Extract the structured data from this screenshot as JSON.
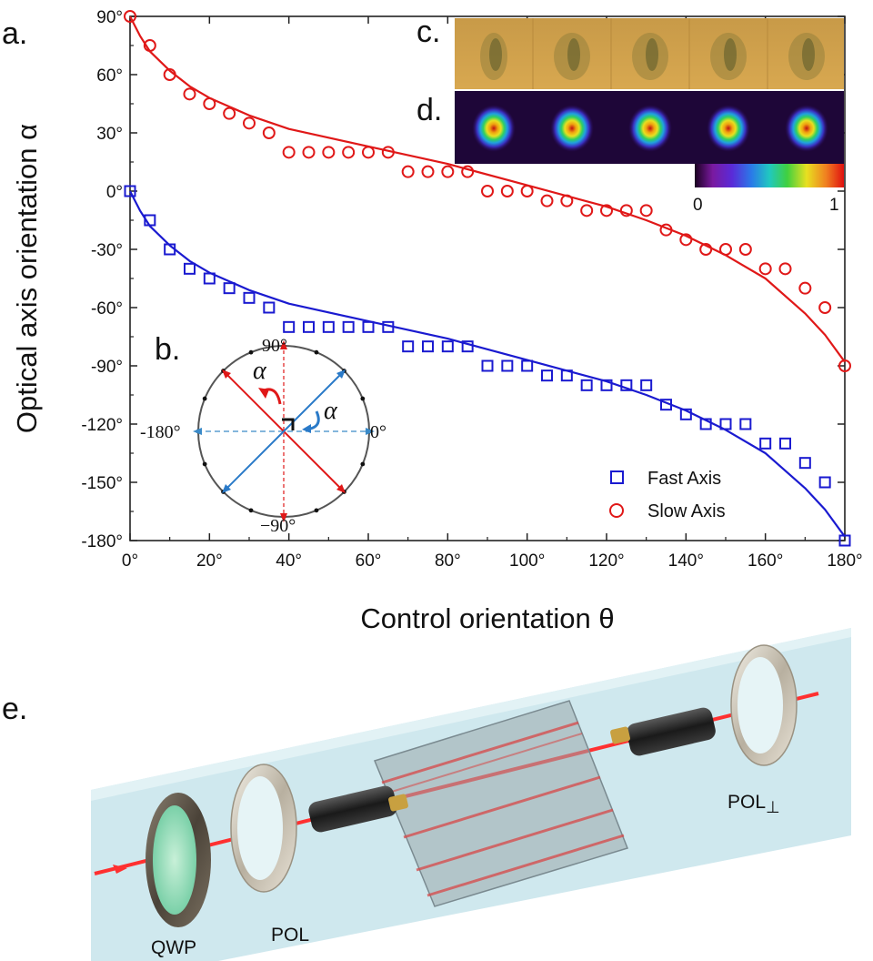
{
  "panel_labels": {
    "a": "a.",
    "b": "b.",
    "c": "c.",
    "d": "d.",
    "e": "e."
  },
  "colors": {
    "fast": "#1a1ad0",
    "slow": "#e01818"
  },
  "chart_data": {
    "type": "scatter",
    "title": "",
    "xlabel": "Control orientation θ",
    "ylabel": "Optical axis orientation α",
    "xlim": [
      0,
      180
    ],
    "ylim": [
      -180,
      90
    ],
    "x_ticks": [
      0,
      20,
      40,
      60,
      80,
      100,
      120,
      140,
      160,
      180
    ],
    "x_tick_labels": [
      "0°",
      "20°",
      "40°",
      "60°",
      "80°",
      "100°",
      "120°",
      "140°",
      "160°",
      "180°"
    ],
    "y_ticks": [
      90,
      60,
      30,
      0,
      -30,
      -60,
      -90,
      -120,
      -150,
      -180
    ],
    "y_tick_labels": [
      "90°",
      "60°",
      "30°",
      "0°",
      "-30°",
      "-60°",
      "-90°",
      "-120°",
      "-150°",
      "-180°"
    ],
    "legend_position": "bottom-right",
    "series": [
      {
        "name": "Fast Axis",
        "marker": "square",
        "x": [
          0,
          5,
          10,
          15,
          20,
          25,
          30,
          35,
          40,
          45,
          50,
          55,
          60,
          65,
          70,
          75,
          80,
          85,
          90,
          95,
          100,
          105,
          110,
          115,
          120,
          125,
          130,
          135,
          140,
          145,
          150,
          155,
          160,
          165,
          170,
          175,
          180
        ],
        "y": [
          0,
          -15,
          -30,
          -40,
          -45,
          -50,
          -55,
          -60,
          -70,
          -70,
          -70,
          -70,
          -70,
          -70,
          -80,
          -80,
          -80,
          -80,
          -90,
          -90,
          -90,
          -95,
          -95,
          -100,
          -100,
          -100,
          -100,
          -110,
          -115,
          -120,
          -120,
          -120,
          -130,
          -130,
          -140,
          -150,
          -180
        ],
        "fit_x": [
          0,
          2.5,
          5,
          10,
          15,
          20,
          30,
          40,
          60,
          80,
          100,
          120,
          130,
          140,
          150,
          160,
          170,
          175,
          180
        ],
        "fit_y": [
          0,
          -10,
          -18,
          -28,
          -36,
          -42,
          -51,
          -58,
          -67,
          -76,
          -87,
          -98,
          -105,
          -113,
          -123,
          -135,
          -153,
          -164,
          -178
        ]
      },
      {
        "name": "Slow Axis",
        "marker": "circle",
        "x": [
          0,
          5,
          10,
          15,
          20,
          25,
          30,
          35,
          40,
          45,
          50,
          55,
          60,
          65,
          70,
          75,
          80,
          85,
          90,
          95,
          100,
          105,
          110,
          115,
          120,
          125,
          130,
          135,
          140,
          145,
          150,
          155,
          160,
          165,
          170,
          175,
          180
        ],
        "y": [
          90,
          75,
          60,
          50,
          45,
          40,
          35,
          30,
          20,
          20,
          20,
          20,
          20,
          20,
          10,
          10,
          10,
          10,
          0,
          0,
          0,
          -5,
          -5,
          -10,
          -10,
          -10,
          -10,
          -20,
          -25,
          -30,
          -30,
          -30,
          -40,
          -40,
          -50,
          -60,
          -90
        ],
        "fit_x": [
          0,
          2.5,
          5,
          10,
          15,
          20,
          30,
          40,
          60,
          80,
          100,
          120,
          130,
          140,
          150,
          160,
          170,
          175,
          180
        ],
        "fit_y": [
          90,
          80,
          72,
          62,
          54,
          48,
          39,
          32,
          23,
          14,
          3,
          -8,
          -15,
          -23,
          -33,
          -45,
          -63,
          -74,
          -88
        ]
      }
    ]
  },
  "inset_polar": {
    "label_90": "90°",
    "label_neg90": "−90°",
    "label_0": "0°",
    "label_180": "-180°",
    "alpha": "α"
  },
  "colorbar": {
    "min_label": "0",
    "max_label": "1"
  },
  "setup": {
    "qwp": "QWP",
    "pol": "POL",
    "pol_perp": "POL",
    "perp_symbol": "⊥"
  }
}
